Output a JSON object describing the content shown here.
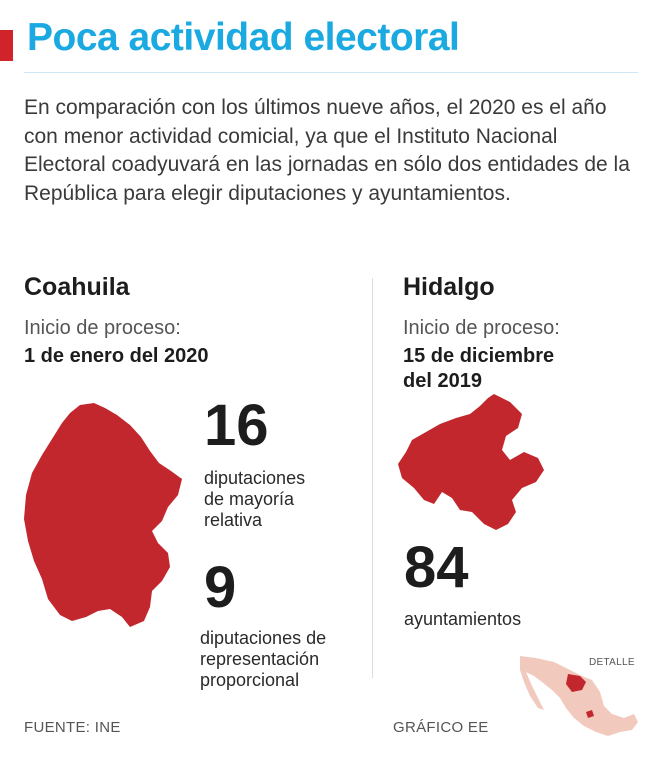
{
  "header": {
    "title": "Poca actividad electoral",
    "intro": "En comparación con los últimos nueve años, el 2020 es el año con menor actividad comicial, ya que el Instituto Nacional Electoral coadyuvará en las jornadas en sólo dos entidades de la República para elegir diputaciones y ayuntamientos."
  },
  "coahuila": {
    "name": "Coahuila",
    "process_label": "Inicio de proceso:",
    "process_date": "1 de enero del 2020",
    "stat1_value": "16",
    "stat1_label_line1": "diputaciones",
    "stat1_label_line2": "de mayoría",
    "stat1_label_line3": "relativa",
    "stat2_value": "9",
    "stat2_label_line1": "diputaciones de",
    "stat2_label_line2": "representación",
    "stat2_label_line3": "proporcional"
  },
  "hidalgo": {
    "name": "Hidalgo",
    "process_label": "Inicio de proceso:",
    "process_date_line1": "15 de diciembre",
    "process_date_line2": "del 2019",
    "stat_value": "84",
    "stat_label": "ayuntamientos"
  },
  "detail_map": {
    "label": "DETALLE"
  },
  "footer": {
    "source": "FUENTE: INE",
    "credit": "GRÁFICO EE"
  },
  "colors": {
    "accent_red": "#d0232a",
    "title_blue": "#1aa9e0",
    "map_red": "#c1272d",
    "map_light": "#f2c9bd"
  }
}
